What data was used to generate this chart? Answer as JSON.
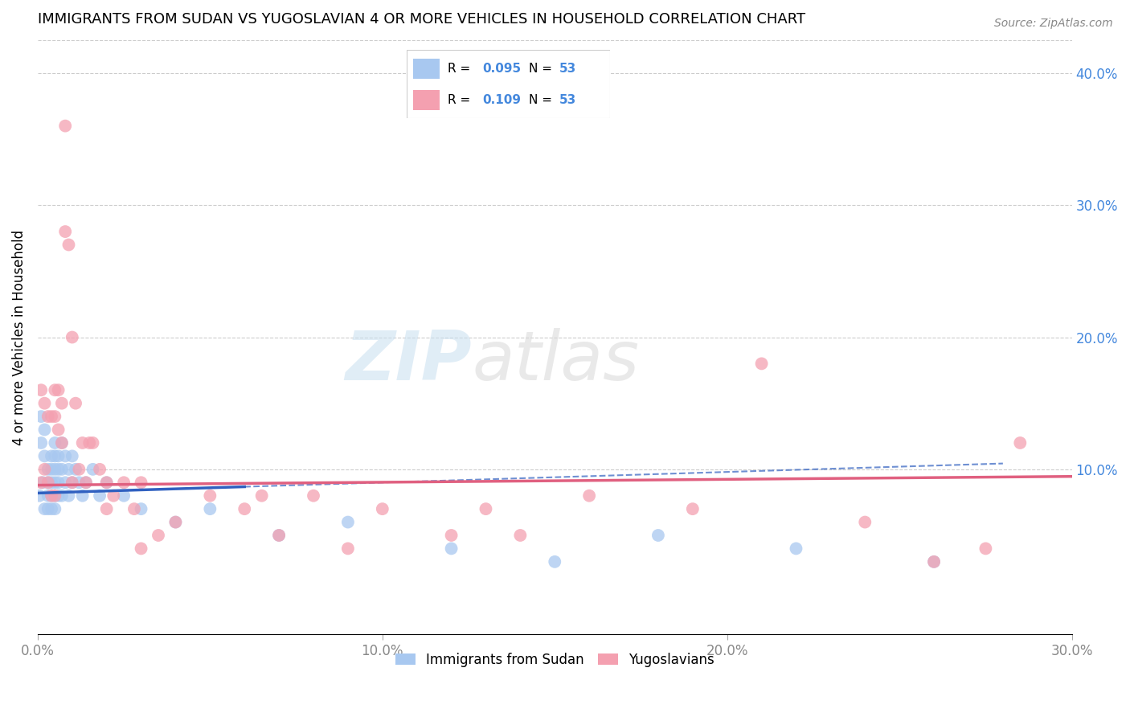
{
  "title": "IMMIGRANTS FROM SUDAN VS YUGOSLAVIAN 4 OR MORE VEHICLES IN HOUSEHOLD CORRELATION CHART",
  "source": "Source: ZipAtlas.com",
  "ylabel": "4 or more Vehicles in Household",
  "xlim": [
    0.0,
    0.3
  ],
  "ylim": [
    -0.025,
    0.425
  ],
  "yticks_right": [
    0.1,
    0.2,
    0.3,
    0.4
  ],
  "ytick_labels_right": [
    "10.0%",
    "20.0%",
    "30.0%",
    "40.0%"
  ],
  "xticks": [
    0.0,
    0.1,
    0.2,
    0.3
  ],
  "xtick_labels": [
    "0.0%",
    "10.0%",
    "20.0%",
    "30.0%"
  ],
  "legend_labels": [
    "Immigrants from Sudan",
    "Yugoslavians"
  ],
  "R_sudan": 0.095,
  "N_sudan": 53,
  "R_yugo": 0.109,
  "N_yugo": 53,
  "color_sudan": "#a8c8f0",
  "color_yugo": "#f4a0b0",
  "color_line_sudan": "#3060c0",
  "color_line_yugo": "#e06080",
  "color_axis_right": "#4488dd",
  "sudan_x": [
    0.0005,
    0.001,
    0.001,
    0.0015,
    0.002,
    0.002,
    0.002,
    0.003,
    0.003,
    0.003,
    0.003,
    0.004,
    0.004,
    0.004,
    0.004,
    0.004,
    0.005,
    0.005,
    0.005,
    0.005,
    0.005,
    0.005,
    0.006,
    0.006,
    0.006,
    0.006,
    0.007,
    0.007,
    0.007,
    0.008,
    0.008,
    0.009,
    0.009,
    0.01,
    0.01,
    0.011,
    0.012,
    0.013,
    0.014,
    0.016,
    0.018,
    0.02,
    0.025,
    0.03,
    0.04,
    0.05,
    0.07,
    0.09,
    0.12,
    0.15,
    0.18,
    0.22,
    0.26
  ],
  "sudan_y": [
    0.08,
    0.14,
    0.12,
    0.09,
    0.13,
    0.11,
    0.07,
    0.1,
    0.09,
    0.08,
    0.07,
    0.11,
    0.1,
    0.09,
    0.08,
    0.07,
    0.12,
    0.11,
    0.1,
    0.09,
    0.08,
    0.07,
    0.11,
    0.1,
    0.09,
    0.08,
    0.12,
    0.1,
    0.08,
    0.11,
    0.09,
    0.1,
    0.08,
    0.11,
    0.09,
    0.1,
    0.09,
    0.08,
    0.09,
    0.1,
    0.08,
    0.09,
    0.08,
    0.07,
    0.06,
    0.07,
    0.05,
    0.06,
    0.04,
    0.03,
    0.05,
    0.04,
    0.03
  ],
  "yugo_x": [
    0.001,
    0.001,
    0.002,
    0.002,
    0.003,
    0.003,
    0.004,
    0.004,
    0.005,
    0.005,
    0.005,
    0.006,
    0.006,
    0.007,
    0.007,
    0.008,
    0.008,
    0.009,
    0.01,
    0.011,
    0.012,
    0.013,
    0.014,
    0.015,
    0.016,
    0.018,
    0.02,
    0.022,
    0.025,
    0.028,
    0.03,
    0.035,
    0.04,
    0.05,
    0.06,
    0.07,
    0.08,
    0.09,
    0.1,
    0.12,
    0.14,
    0.16,
    0.19,
    0.21,
    0.24,
    0.26,
    0.275,
    0.285,
    0.01,
    0.02,
    0.03,
    0.065,
    0.13
  ],
  "yugo_y": [
    0.09,
    0.16,
    0.15,
    0.1,
    0.14,
    0.09,
    0.14,
    0.08,
    0.16,
    0.14,
    0.08,
    0.16,
    0.13,
    0.15,
    0.12,
    0.36,
    0.28,
    0.27,
    0.2,
    0.15,
    0.1,
    0.12,
    0.09,
    0.12,
    0.12,
    0.1,
    0.09,
    0.08,
    0.09,
    0.07,
    0.09,
    0.05,
    0.06,
    0.08,
    0.07,
    0.05,
    0.08,
    0.04,
    0.07,
    0.05,
    0.05,
    0.08,
    0.07,
    0.18,
    0.06,
    0.03,
    0.04,
    0.12,
    0.09,
    0.07,
    0.04,
    0.08,
    0.07
  ],
  "watermark_zip": "ZIP",
  "watermark_atlas": "atlas",
  "grid_color": "#cccccc",
  "grid_linestyle": "--",
  "grid_linewidth": 0.8
}
